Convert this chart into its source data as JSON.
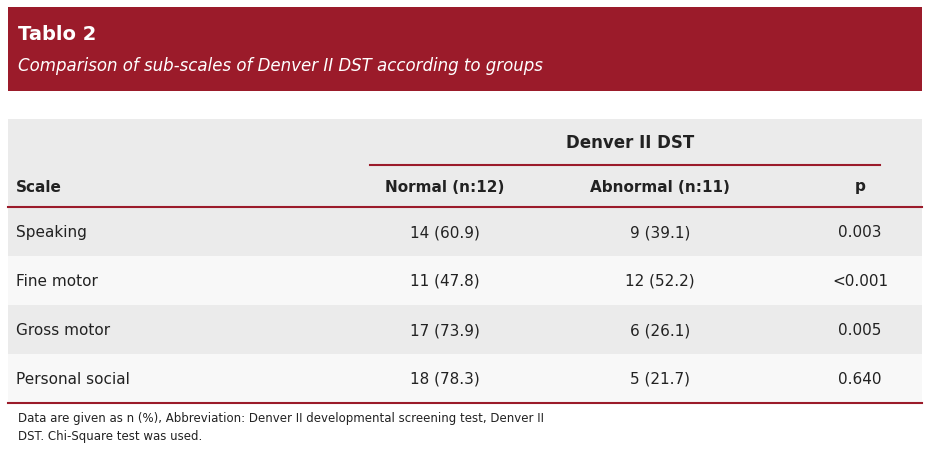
{
  "title_line1": "Tablo 2",
  "title_line2": "Comparison of sub-scales of Denver II DST according to groups",
  "header_bg": "#9B1B2A",
  "header_text_color": "#FFFFFF",
  "table_bg_light": "#EBEBEB",
  "table_bg_white": "#F8F8F8",
  "body_text_color": "#222222",
  "col_header": "Denver II DST",
  "col_sub1": "Normal (n:12)",
  "col_sub2": "Abnormal (n:11)",
  "col_p": "p",
  "col_scale": "Scale",
  "rows": [
    [
      "Speaking",
      "14 (60.9)",
      "9 (39.1)",
      "0.003"
    ],
    [
      "Fine motor",
      "11 (47.8)",
      "12 (52.2)",
      "<0.001"
    ],
    [
      "Gross motor",
      "17 (73.9)",
      "6 (26.1)",
      "0.005"
    ],
    [
      "Personal social",
      "18 (78.3)",
      "5 (21.7)",
      "0.640"
    ]
  ],
  "footnote": "Data are given as n (%), Abbreviation: Denver II developmental screening test, Denver II\nDST. Chi-Square test was used.",
  "line_color": "#9B1B2A",
  "fig_width": 9.3,
  "fig_height": 4.6,
  "dpi": 100
}
